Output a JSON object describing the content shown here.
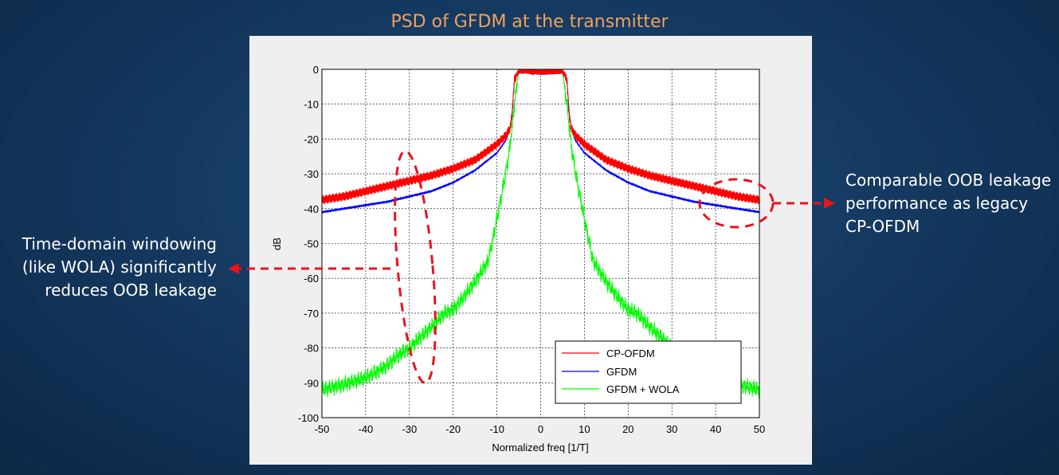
{
  "slide": {
    "title": "PSD of GFDM at the transmitter",
    "annotation_left": "Time-domain windowing (like WOLA) significantly reduces OOB leakage",
    "annotation_right": "Comparable OOB leakage performance as legacy CP-OFDM"
  },
  "colors": {
    "title": "#f0a25a",
    "annotation_arrows": "#e8141c",
    "cp_ofdm": "#ff0000",
    "gfdm": "#0000ff",
    "gfdm_wola": "#00ff00"
  },
  "chart_data": {
    "type": "line",
    "title": "",
    "xlabel": "Normalized freq [1/T]",
    "ylabel": "dB",
    "xlim": [
      -50,
      50
    ],
    "ylim": [
      -100,
      0
    ],
    "xticks": [
      -50,
      -40,
      -30,
      -20,
      -10,
      0,
      10,
      20,
      30,
      40,
      50
    ],
    "yticks": [
      0,
      -10,
      -20,
      -30,
      -40,
      -50,
      -60,
      -70,
      -80,
      -90,
      -100
    ],
    "grid": true,
    "legend_position": "bottom-right",
    "series": [
      {
        "name": "CP-OFDM",
        "x": [
          -50,
          -45,
          -40,
          -35,
          -30,
          -25,
          -20,
          -15,
          -10,
          -8,
          -7,
          -6.5,
          -6,
          -5,
          0,
          5,
          6,
          6.5,
          7,
          8,
          10,
          15,
          20,
          25,
          30,
          35,
          40,
          45,
          50
        ],
        "y": [
          -37.5,
          -36.5,
          -35,
          -33.5,
          -32,
          -30.5,
          -28.5,
          -26,
          -21.5,
          -19,
          -17,
          -13,
          -3,
          -0.5,
          -1,
          -0.5,
          -3,
          -13,
          -17,
          -19,
          -21.5,
          -26,
          -28.5,
          -30.5,
          -32,
          -33.5,
          -35,
          -36.5,
          -37.5
        ]
      },
      {
        "name": "GFDM",
        "x": [
          -50,
          -45,
          -40,
          -35,
          -30,
          -25,
          -20,
          -15,
          -10,
          -8,
          -7,
          -6.5,
          -6,
          -5,
          0,
          5,
          6,
          6.5,
          7,
          8,
          10,
          15,
          20,
          25,
          30,
          35,
          40,
          45,
          50
        ],
        "y": [
          -41,
          -40,
          -39,
          -38,
          -36.5,
          -35,
          -32.5,
          -29,
          -24,
          -20.5,
          -17,
          -12,
          -3,
          -0.5,
          -1,
          -0.5,
          -3,
          -12,
          -17,
          -20.5,
          -24,
          -29,
          -32.5,
          -35,
          -36.5,
          -38,
          -39,
          -40,
          -41
        ],
        "style": "smooth"
      },
      {
        "name": "GFDM + WOLA",
        "x": [
          -50,
          -45,
          -40,
          -37,
          -35,
          -33,
          -30,
          -28,
          -25,
          -22,
          -20,
          -18,
          -15,
          -12,
          -10,
          -8,
          -7,
          -6,
          -5,
          0,
          5,
          6,
          7,
          8,
          10,
          12,
          15,
          18,
          20,
          22,
          25,
          28,
          30,
          33,
          35,
          37,
          40,
          45,
          50
        ],
        "y": [
          -92,
          -90.5,
          -88.5,
          -86.5,
          -85,
          -82.5,
          -80,
          -77.5,
          -74,
          -70,
          -69,
          -66,
          -61,
          -55,
          -43,
          -30,
          -22,
          -10,
          -0.5,
          -1,
          -0.5,
          -10,
          -22,
          -30,
          -43,
          -55,
          -61,
          -66,
          -69,
          -70,
          -74,
          -77.5,
          -80,
          -82.5,
          -85,
          -86.5,
          -88.5,
          -90.5,
          -92
        ]
      }
    ]
  }
}
